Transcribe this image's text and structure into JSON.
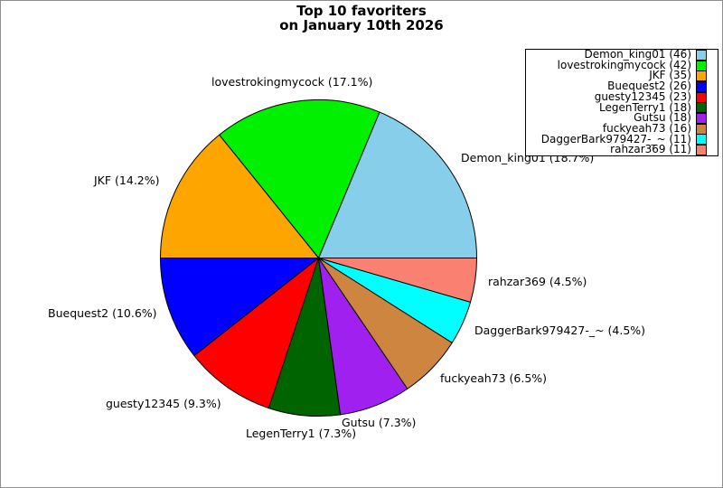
{
  "chart_data": {
    "type": "pie",
    "title": "Top 10 favoriters",
    "subtitle": "on January 10th 2026",
    "legend_position": "top-right",
    "start_angle_deg": 0,
    "direction": "counterclockwise",
    "slices": [
      {
        "name": "Demon_king01",
        "count": 46,
        "pct": 18.7,
        "color": "#87CEEB",
        "callout": "Demon_king01 (18.7%)",
        "legend_label": "Demon_king01 (46)"
      },
      {
        "name": "lovestrokingmycock",
        "count": 42,
        "pct": 17.1,
        "color": "#00F000",
        "callout": "lovestrokingmycock (17.1%)",
        "legend_label": "lovestrokingmycock (42)"
      },
      {
        "name": "JKF",
        "count": 35,
        "pct": 14.2,
        "color": "#FFA500",
        "callout": "JKF (14.2%)",
        "legend_label": "JKF (35)"
      },
      {
        "name": "Buequest2",
        "count": 26,
        "pct": 10.6,
        "color": "#0000FF",
        "callout": "Buequest2 (10.6%)",
        "legend_label": "Buequest2 (26)"
      },
      {
        "name": "guesty12345",
        "count": 23,
        "pct": 9.3,
        "color": "#FF0000",
        "callout": "guesty12345 (9.3%)",
        "legend_label": "guesty12345 (23)"
      },
      {
        "name": "LegenTerry1",
        "count": 18,
        "pct": 7.3,
        "color": "#006400",
        "callout": "LegenTerry1 (7.3%)",
        "legend_label": "LegenTerry1 (18)"
      },
      {
        "name": "Gutsu",
        "count": 18,
        "pct": 7.3,
        "color": "#A020F0",
        "callout": "Gutsu (7.3%)",
        "legend_label": "Gutsu (18)"
      },
      {
        "name": "fuckyeah73",
        "count": 16,
        "pct": 6.5,
        "color": "#CD853F",
        "callout": "fuckyeah73 (6.5%)",
        "legend_label": "fuckyeah73 (16)"
      },
      {
        "name": "DaggerBark979427-_~",
        "count": 11,
        "pct": 4.5,
        "color": "#00FFFF",
        "callout": "DaggerBark979427-_~ (4.5%)",
        "legend_label": "DaggerBark979427-_~ (11)"
      },
      {
        "name": "rahzar369",
        "count": 11,
        "pct": 4.5,
        "color": "#FA8072",
        "callout": "rahzar369 (4.5%)",
        "legend_label": "rahzar369 (11)"
      }
    ]
  }
}
